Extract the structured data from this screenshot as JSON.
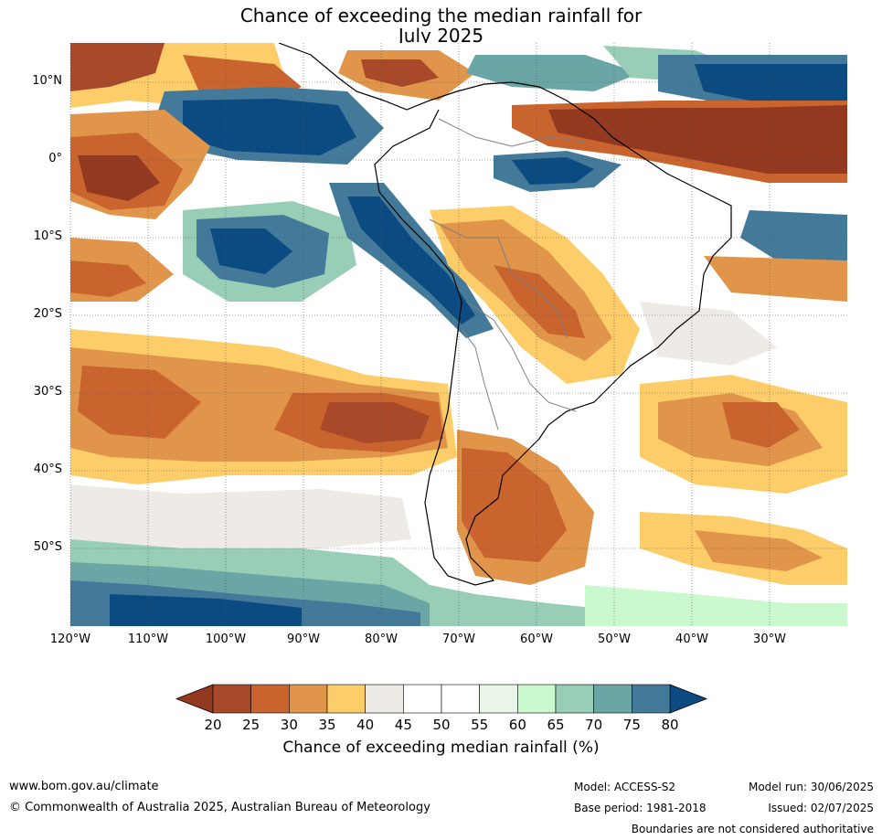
{
  "title_line1": "Chance of exceeding the median rainfall for",
  "title_line2": "July 2025",
  "lat_labels": [
    {
      "text": "10°N",
      "lat": 10
    },
    {
      "text": "0°",
      "lat": 0
    },
    {
      "text": "10°S",
      "lat": -10
    },
    {
      "text": "20°S",
      "lat": -20
    },
    {
      "text": "30°S",
      "lat": -30
    },
    {
      "text": "40°S",
      "lat": -40
    },
    {
      "text": "50°S",
      "lat": -50
    }
  ],
  "lon_labels": [
    {
      "text": "120°W",
      "lon": -120
    },
    {
      "text": "110°W",
      "lon": -110
    },
    {
      "text": "100°W",
      "lon": -100
    },
    {
      "text": "90°W",
      "lon": -90
    },
    {
      "text": "80°W",
      "lon": -80
    },
    {
      "text": "70°W",
      "lon": -70
    },
    {
      "text": "60°W",
      "lon": -60
    },
    {
      "text": "50°W",
      "lon": -50
    },
    {
      "text": "40°W",
      "lon": -40
    },
    {
      "text": "30°W",
      "lon": -30
    }
  ],
  "map_extent": {
    "lon_min": -120,
    "lon_max": -20,
    "lat_min": -60,
    "lat_max": 15
  },
  "colorbar": {
    "ticks": [
      "20",
      "25",
      "30",
      "35",
      "40",
      "45",
      "50",
      "55",
      "60",
      "65",
      "70",
      "75",
      "80"
    ],
    "colors": [
      "#a84a2a",
      "#c9642f",
      "#e0954a",
      "#fdcd6a",
      "#eeeae6",
      "#ffffff",
      "#ffffff",
      "#e9f5e9",
      "#c9f9cc",
      "#98cdb6",
      "#6aa6a6",
      "#437a9a"
    ],
    "under_color": "#93391f",
    "over_color": "#0c4a82",
    "label": "Chance of exceeding median rainfall (%)"
  },
  "footer": {
    "website": "www.bom.gov.au/climate",
    "copyright": "© Commonwealth of Australia 2025, Australian Bureau of Meteorology",
    "model": "Model: ACCESS-S2",
    "base_period": "Base period: 1981-2018",
    "model_run": "Model run: 30/06/2025",
    "issued": "Issued: 02/07/2025",
    "disclaimer": "Boundaries are not considered authoritative"
  }
}
